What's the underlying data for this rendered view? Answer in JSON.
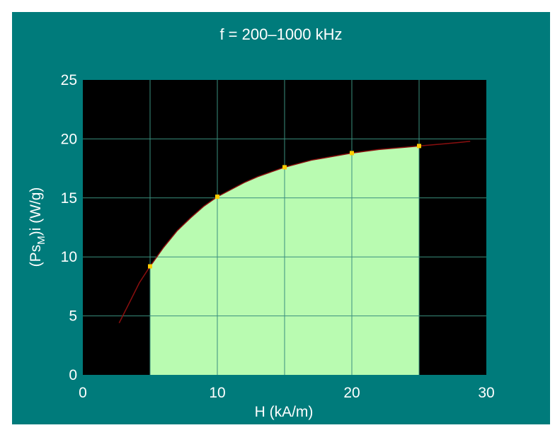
{
  "colors": {
    "panel_bg": "#007b7b",
    "plot_bg": "#000000",
    "fill_area": "#b9fbb1",
    "grid": "#3a8f7e",
    "curve": "#8b0f0f",
    "marker": "#ffcc00",
    "text": "#ffffff"
  },
  "chart_data": {
    "type": "area",
    "title": "f = 200–1000 kHz",
    "xlabel": "H (kA/m)",
    "ylabel": {
      "main": "(Ps",
      "sub": "M",
      "rest": ")i (W/g)"
    },
    "xlim": [
      0,
      30
    ],
    "ylim": [
      0,
      25
    ],
    "x_ticks": [
      "0",
      "10",
      "20",
      "30"
    ],
    "y_ticks": [
      "0",
      "5",
      "10",
      "15",
      "20",
      "25"
    ],
    "grid": true,
    "points": [
      {
        "x": 5,
        "y": 9.2
      },
      {
        "x": 10,
        "y": 15.1
      },
      {
        "x": 15,
        "y": 17.6
      },
      {
        "x": 20,
        "y": 18.8
      },
      {
        "x": 25,
        "y": 19.4
      }
    ],
    "curve": [
      {
        "x": 2.7,
        "y": 4.4
      },
      {
        "x": 3.5,
        "y": 6.2
      },
      {
        "x": 4.2,
        "y": 7.8
      },
      {
        "x": 5,
        "y": 9.2
      },
      {
        "x": 6,
        "y": 10.8
      },
      {
        "x": 7,
        "y": 12.2
      },
      {
        "x": 8,
        "y": 13.3
      },
      {
        "x": 9,
        "y": 14.3
      },
      {
        "x": 10,
        "y": 15.1
      },
      {
        "x": 11,
        "y": 15.7
      },
      {
        "x": 12,
        "y": 16.3
      },
      {
        "x": 13,
        "y": 16.8
      },
      {
        "x": 14,
        "y": 17.2
      },
      {
        "x": 15,
        "y": 17.6
      },
      {
        "x": 16,
        "y": 17.9
      },
      {
        "x": 17,
        "y": 18.2
      },
      {
        "x": 18,
        "y": 18.4
      },
      {
        "x": 19,
        "y": 18.6
      },
      {
        "x": 20,
        "y": 18.8
      },
      {
        "x": 21,
        "y": 18.95
      },
      {
        "x": 22,
        "y": 19.1
      },
      {
        "x": 23,
        "y": 19.2
      },
      {
        "x": 24,
        "y": 19.3
      },
      {
        "x": 25,
        "y": 19.4
      },
      {
        "x": 26,
        "y": 19.5
      },
      {
        "x": 27,
        "y": 19.6
      },
      {
        "x": 28,
        "y": 19.7
      },
      {
        "x": 28.8,
        "y": 19.8
      }
    ],
    "shaded_x_range": [
      5,
      25
    ]
  }
}
